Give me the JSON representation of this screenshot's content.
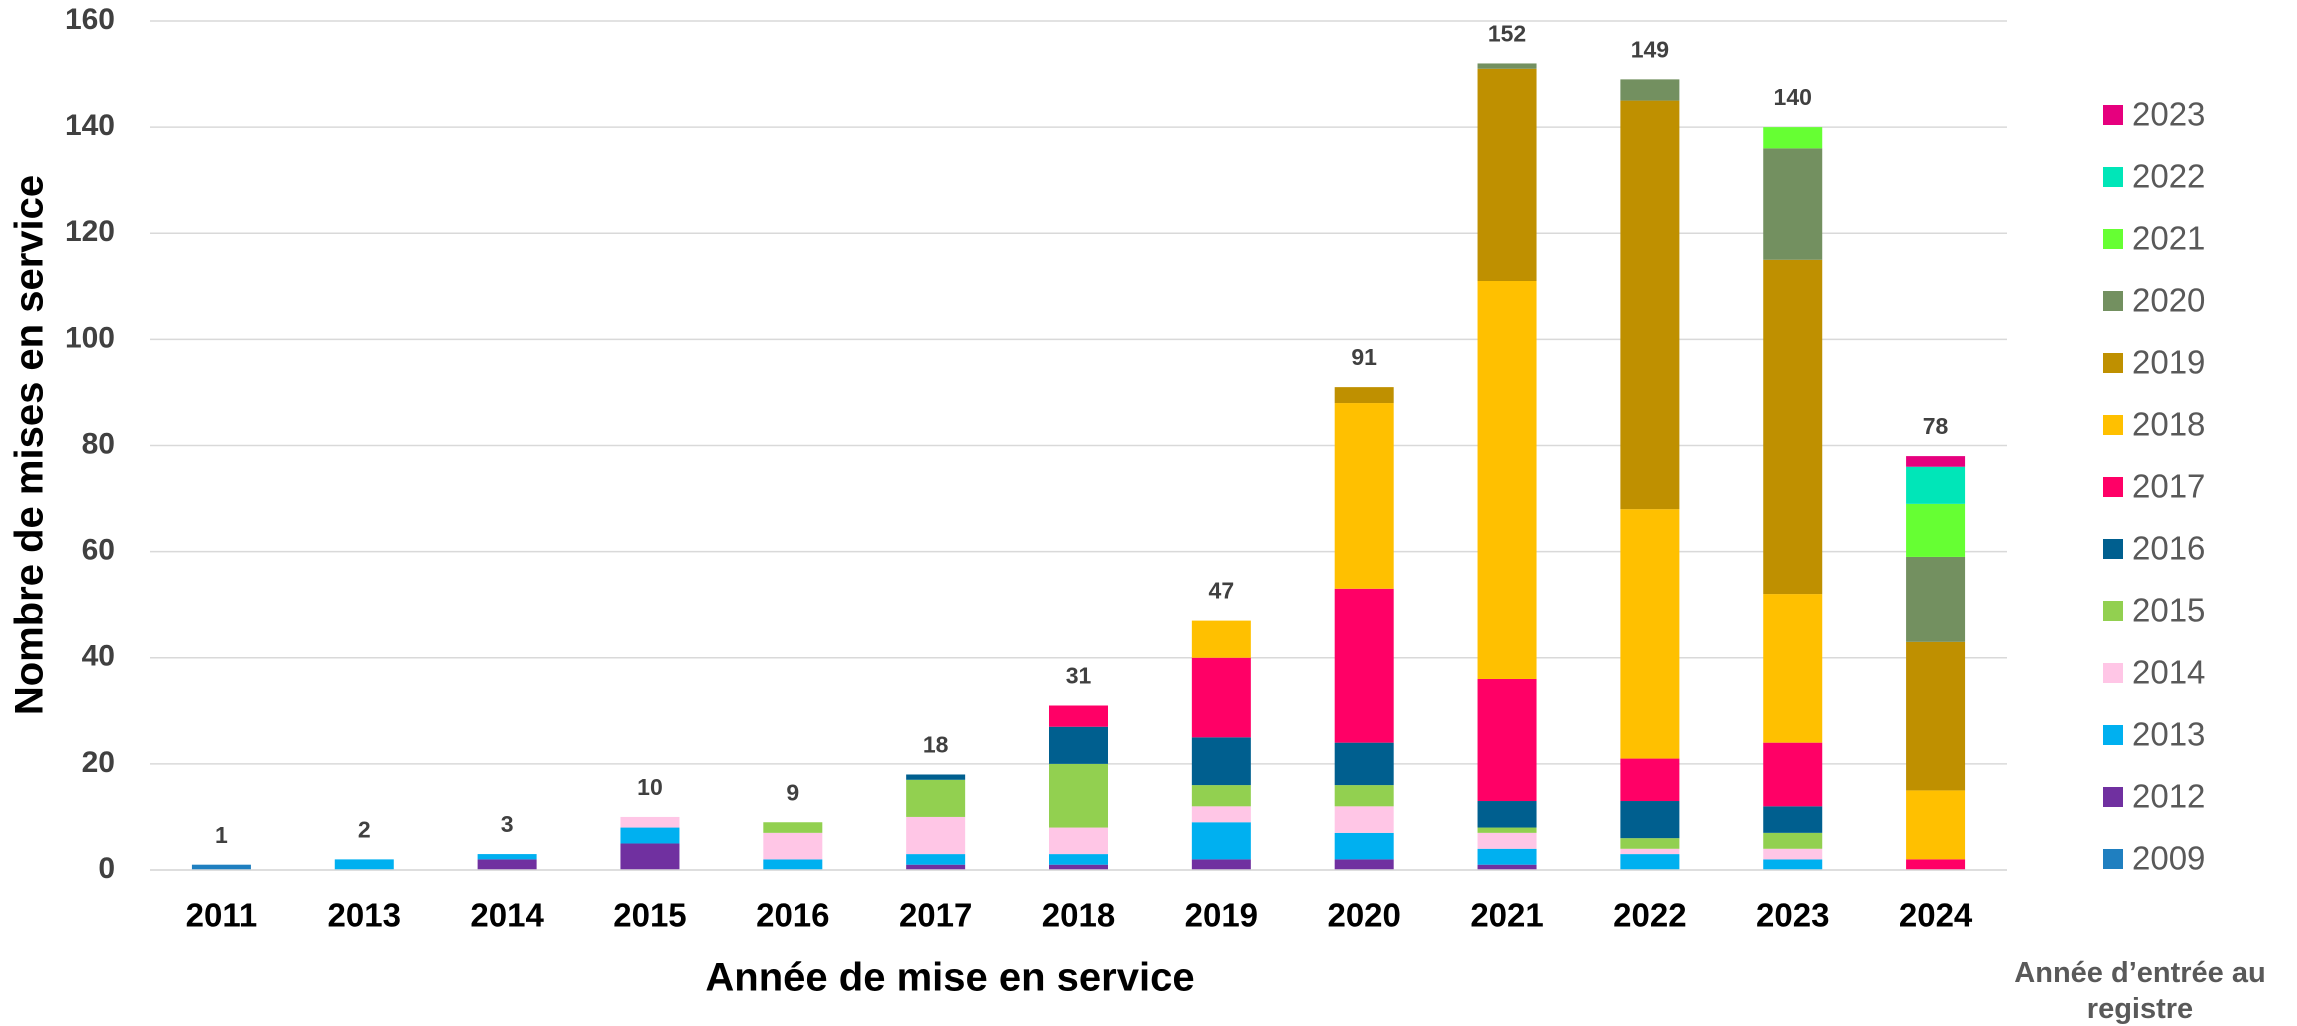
{
  "chart_data": {
    "type": "stacked_bar",
    "x_label": "Année de mise en service",
    "y_label": "Nombre de mises en service",
    "legend_title": "Année d’entrée au registre",
    "categories": [
      "2011",
      "2013",
      "2014",
      "2015",
      "2016",
      "2017",
      "2018",
      "2019",
      "2020",
      "2021",
      "2022",
      "2023",
      "2024"
    ],
    "totals": [
      1,
      2,
      3,
      10,
      9,
      18,
      31,
      47,
      91,
      152,
      149,
      140,
      78
    ],
    "series": [
      {
        "name": "2009",
        "color": "#1f7fc0",
        "values": [
          1,
          null,
          null,
          null,
          null,
          null,
          null,
          null,
          null,
          null,
          null,
          null,
          null
        ]
      },
      {
        "name": "2012",
        "color": "#7030a0",
        "values": [
          null,
          null,
          2,
          5,
          null,
          1,
          1,
          2,
          2,
          1,
          null,
          null,
          null
        ]
      },
      {
        "name": "2013",
        "color": "#00b0f0",
        "values": [
          null,
          2,
          1,
          3,
          2,
          2,
          2,
          7,
          5,
          3,
          3,
          2,
          null
        ]
      },
      {
        "name": "2014",
        "color": "#ffc6e6",
        "values": [
          null,
          null,
          null,
          2,
          5,
          7,
          5,
          3,
          5,
          3,
          1,
          2,
          null
        ]
      },
      {
        "name": "2015",
        "color": "#92d050",
        "values": [
          null,
          null,
          null,
          null,
          2,
          7,
          12,
          4,
          4,
          1,
          2,
          3,
          null
        ]
      },
      {
        "name": "2016",
        "color": "#005f8f",
        "values": [
          null,
          null,
          null,
          null,
          null,
          1,
          7,
          9,
          8,
          5,
          7,
          5,
          null
        ]
      },
      {
        "name": "2017",
        "color": "#ff0066",
        "values": [
          null,
          null,
          null,
          null,
          null,
          null,
          4,
          15,
          29,
          23,
          8,
          12,
          2
        ]
      },
      {
        "name": "2018",
        "color": "#ffc000",
        "values": [
          null,
          null,
          null,
          null,
          null,
          null,
          null,
          7,
          35,
          75,
          47,
          28,
          13
        ]
      },
      {
        "name": "2019",
        "color": "#bf9000",
        "values": [
          null,
          null,
          null,
          null,
          null,
          null,
          null,
          null,
          3,
          40,
          77,
          63,
          28
        ]
      },
      {
        "name": "2020",
        "color": "#739060",
        "values": [
          null,
          null,
          null,
          null,
          null,
          null,
          null,
          null,
          null,
          1,
          4,
          21,
          16
        ]
      },
      {
        "name": "2021",
        "color": "#66ff33",
        "values": [
          null,
          null,
          null,
          null,
          null,
          null,
          null,
          null,
          null,
          null,
          null,
          4,
          10
        ]
      },
      {
        "name": "2022",
        "color": "#00e6b8",
        "values": [
          null,
          null,
          null,
          null,
          null,
          null,
          null,
          null,
          null,
          null,
          null,
          null,
          7
        ]
      },
      {
        "name": "2023",
        "color": "#e6007e",
        "values": [
          null,
          null,
          null,
          null,
          null,
          null,
          null,
          null,
          null,
          null,
          null,
          null,
          2
        ]
      }
    ],
    "ylim": [
      0,
      160
    ],
    "yticks": [
      0,
      20,
      40,
      60,
      80,
      100,
      120,
      140,
      160
    ],
    "grid": true
  }
}
